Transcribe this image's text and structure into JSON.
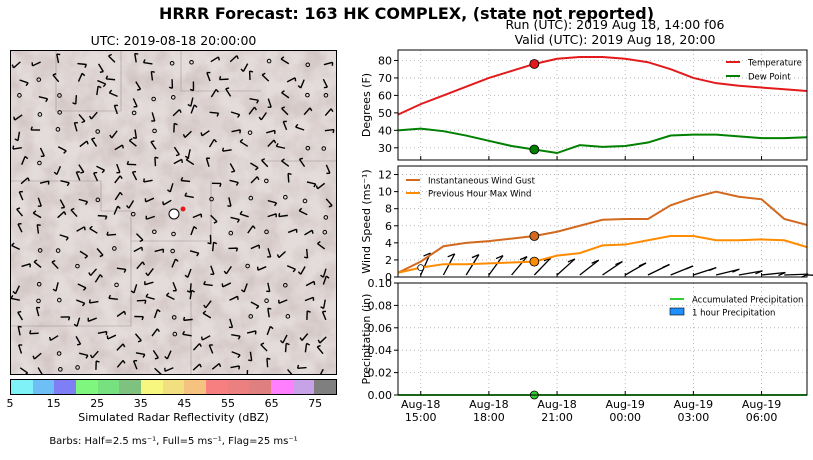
{
  "title": "HRRR Forecast: 163 HK COMPLEX, (state not reported)",
  "run_text": "Run (UTC): 2019 Aug 18, 14:00 f06",
  "valid_text": "Valid (UTC): 2019 Aug 18, 20:00",
  "map": {
    "title": "UTC: 2019-08-18 20:00:00",
    "colorbar_title": "Simulated Radar Reflectivity (dBZ)",
    "colorbar_ticks": [
      "5",
      "15",
      "25",
      "35",
      "45",
      "55",
      "65",
      "75"
    ],
    "colorbar_colors": [
      "#7ff2f7",
      "#6fbff7",
      "#7f7ff5",
      "#7ff77f",
      "#77e07f",
      "#7fc27f",
      "#f7f77f",
      "#f2df7f",
      "#f5c27f",
      "#f77f7f",
      "#ec7f7f",
      "#df7f7f",
      "#ff7fff",
      "#c8a2e6",
      "#7f7f7f"
    ],
    "barbs_note": "Barbs: Half=2.5 ms⁻¹, Full=5 ms⁻¹, Flag=25 ms⁻¹"
  },
  "chart_data": [
    {
      "type": "line",
      "ylabel": "Degrees (F)",
      "ylim": [
        23,
        86
      ],
      "yticks": [
        30,
        40,
        50,
        60,
        70,
        80
      ],
      "grid": true,
      "legend_position": "top-right",
      "x_hours": [
        14,
        15,
        16,
        17,
        18,
        19,
        20,
        21,
        22,
        23,
        24,
        25,
        26,
        27,
        28,
        29,
        30,
        31,
        32
      ],
      "series": [
        {
          "name": "Temperature",
          "color": "#e31a1c",
          "values": [
            49,
            55,
            60,
            65,
            70,
            74,
            78,
            81,
            82,
            82,
            81,
            79,
            75,
            70,
            67,
            65.5,
            64.5,
            63.5,
            62.5
          ]
        },
        {
          "name": "Dew Point",
          "color": "#008000",
          "values": [
            40,
            41,
            39.5,
            37,
            34,
            31,
            29,
            27,
            31.5,
            30.5,
            31,
            33,
            37,
            37.5,
            37.5,
            36.5,
            35.5,
            35.5,
            36
          ]
        }
      ],
      "marker_hour": 20
    },
    {
      "type": "line",
      "ylabel": "Wind Speed (ms⁻¹)",
      "ylim": [
        0,
        13
      ],
      "yticks": [
        0,
        2,
        4,
        6,
        8,
        10,
        12
      ],
      "grid": true,
      "legend_position": "top-left",
      "x_hours": [
        14,
        15,
        16,
        17,
        18,
        19,
        20,
        21,
        22,
        23,
        24,
        25,
        26,
        27,
        28,
        29,
        30,
        31,
        32
      ],
      "series": [
        {
          "name": "Instantaneous Wind Gust",
          "color": "#d2691e",
          "values": [
            0.5,
            1.8,
            3.6,
            4.0,
            4.2,
            4.5,
            4.8,
            5.3,
            6.0,
            6.7,
            6.8,
            6.8,
            8.4,
            9.3,
            10.0,
            9.4,
            9.1,
            6.8,
            6.1
          ]
        },
        {
          "name": "Previous Hour Max Wind",
          "color": "#ff8c00",
          "values": [
            0.5,
            1.1,
            1.5,
            1.5,
            1.6,
            1.7,
            1.8,
            2.5,
            2.8,
            3.7,
            3.8,
            4.3,
            4.8,
            4.8,
            4.3,
            4.3,
            4.4,
            4.3,
            3.5
          ]
        }
      ],
      "marker_hour": 20
    },
    {
      "type": "bar",
      "ylabel": "Precipitation (in)",
      "ylim": [
        0,
        0.1
      ],
      "yticks": [
        "0.00",
        "0.02",
        "0.04",
        "0.06",
        "0.08",
        "0.10"
      ],
      "grid": true,
      "legend_position": "top-right",
      "x_hours": [
        14,
        15,
        16,
        17,
        18,
        19,
        20,
        21,
        22,
        23,
        24,
        25,
        26,
        27,
        28,
        29,
        30,
        31,
        32
      ],
      "series": [
        {
          "name": "Accumulated Precipitation",
          "color": "#32cd32",
          "values": [
            0,
            0,
            0,
            0,
            0,
            0,
            0,
            0,
            0,
            0,
            0,
            0,
            0,
            0,
            0,
            0,
            0,
            0,
            0
          ]
        },
        {
          "name": "1 hour Precipitation",
          "color": "#1e90ff",
          "values": [
            0,
            0,
            0,
            0,
            0,
            0,
            0,
            0,
            0,
            0,
            0,
            0,
            0,
            0,
            0,
            0,
            0,
            0,
            0
          ]
        }
      ],
      "marker_hour": 20
    }
  ],
  "x_axis": {
    "tick_hours": [
      15,
      18,
      21,
      24,
      27,
      30
    ],
    "tick_labels": [
      [
        "Aug-18",
        "15:00"
      ],
      [
        "Aug-18",
        "18:00"
      ],
      [
        "Aug-18",
        "21:00"
      ],
      [
        "Aug-19",
        "00:00"
      ],
      [
        "Aug-19",
        "03:00"
      ],
      [
        "Aug-19",
        "06:00"
      ]
    ],
    "xlim": [
      14,
      32
    ]
  }
}
